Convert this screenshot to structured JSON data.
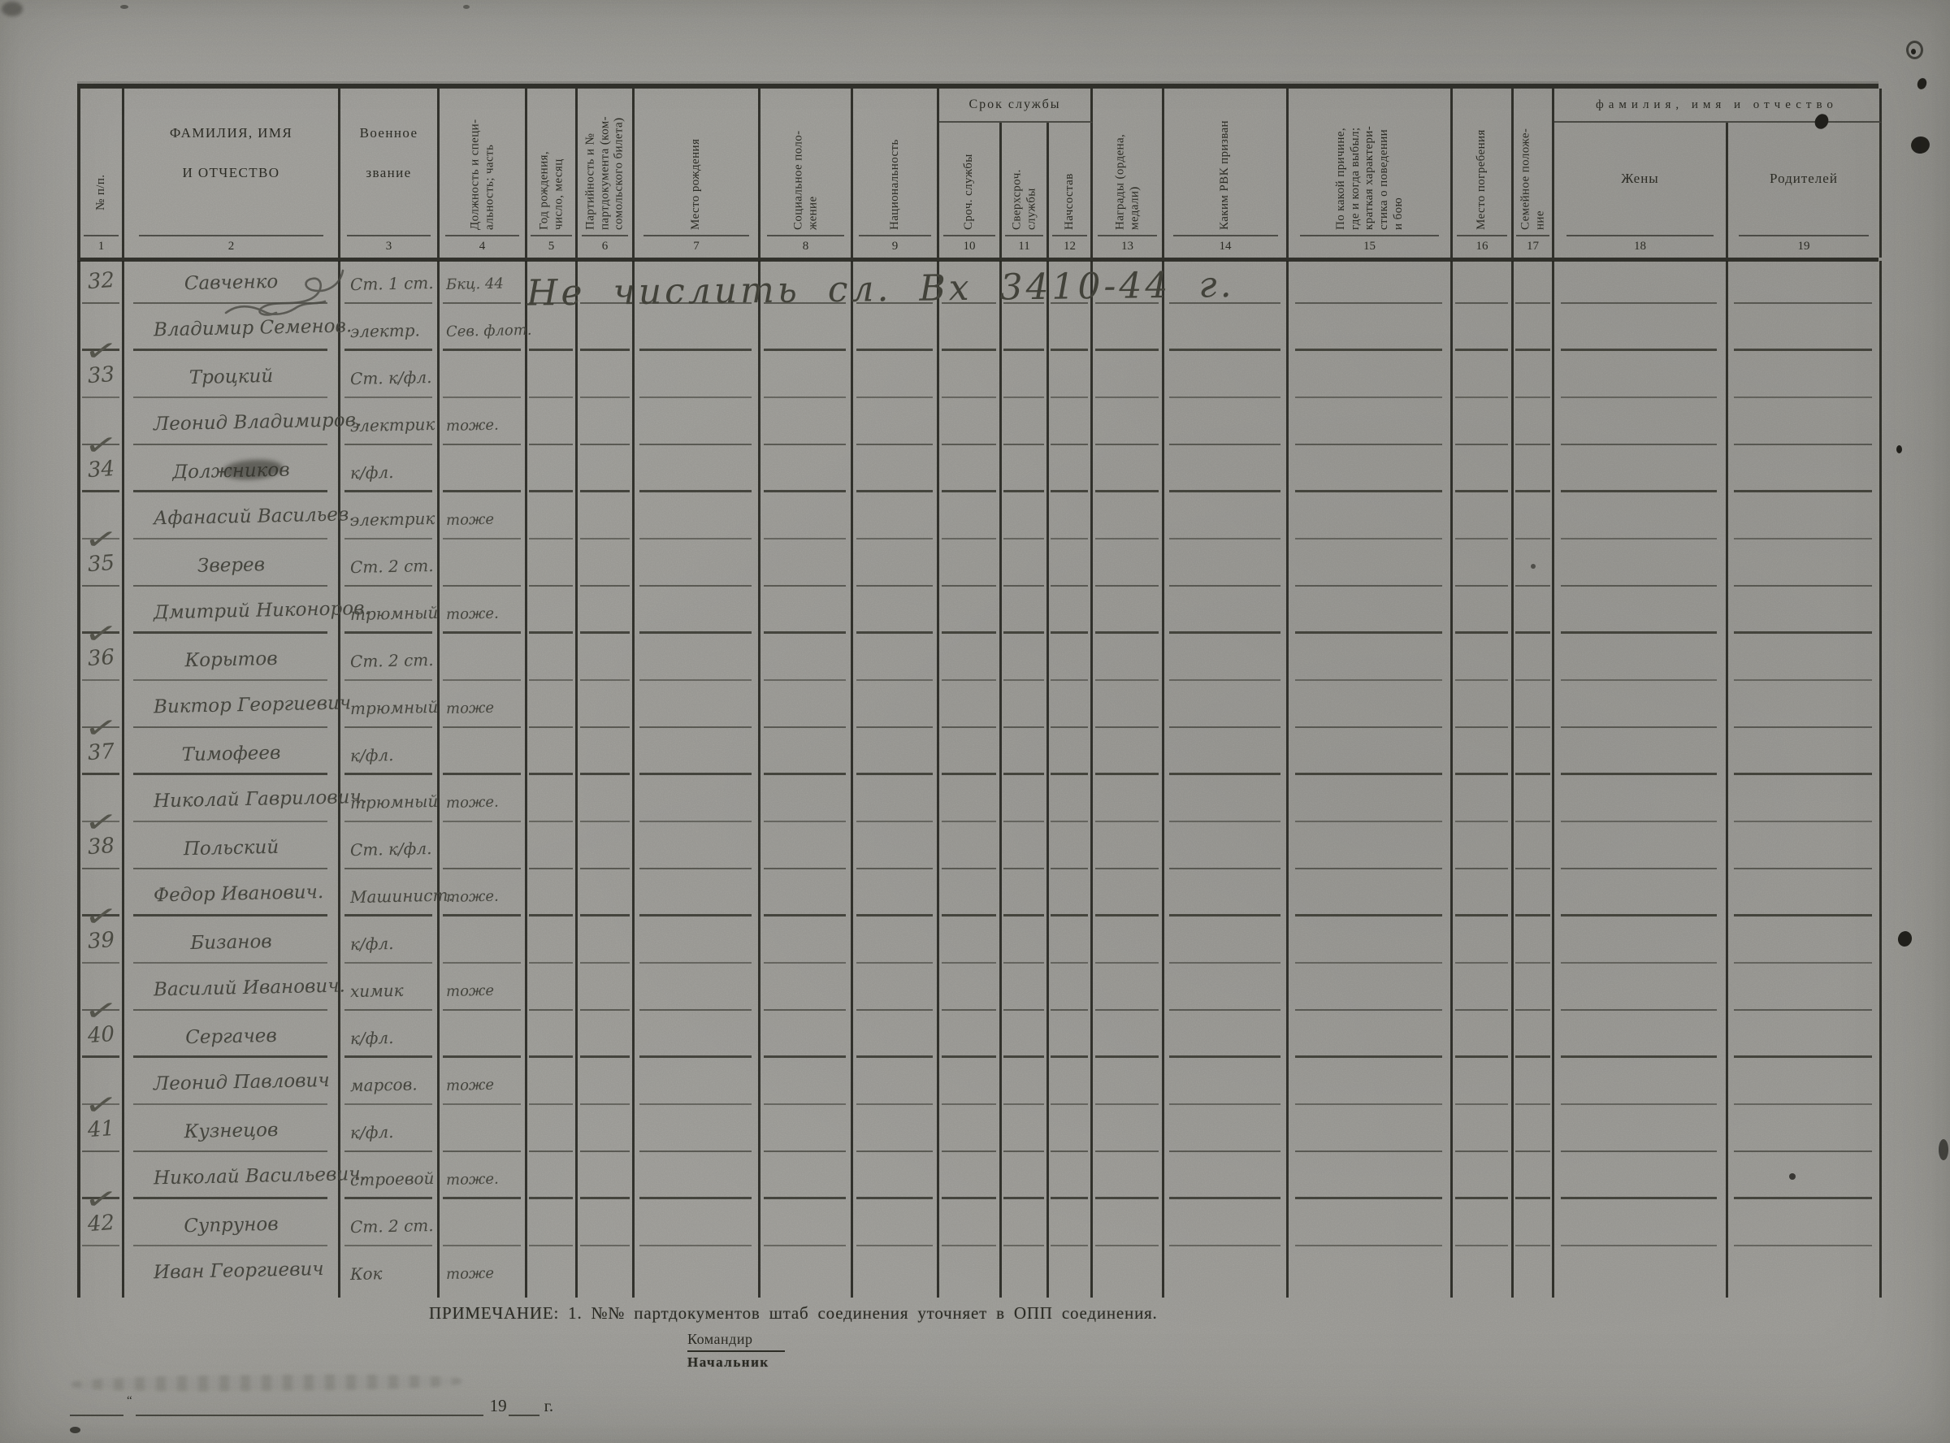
{
  "document": {
    "annotation": "Не числить сл. Вх 3410-44 г.",
    "note": "ПРИМЕЧАНИЕ: 1. №№ партдокументов штаб соединения уточняет в ОПП соединения.",
    "commander_label": "Командир",
    "chief_label": "Начальник",
    "date_quote": "“",
    "date_year": "19",
    "date_suffix": "г.",
    "checkmark_glyph": "✓"
  },
  "table": {
    "group_service": "Срок службы",
    "group_fio": "фамилия, имя и отчество",
    "columns": [
      {
        "num": "1",
        "label": "№ п/п."
      },
      {
        "num": "2",
        "label": "ФАМИЛИЯ, ИМЯ\nИ ОТЧЕСТВО"
      },
      {
        "num": "3",
        "label": "Военное\nзвание"
      },
      {
        "num": "4",
        "label": "Должность и специ-\nальность; часть"
      },
      {
        "num": "5",
        "label": "Год рождения,\nчисло, месяц"
      },
      {
        "num": "6",
        "label": "Партийность и №\nпартдокумента (ком-\nсомольского билета)"
      },
      {
        "num": "7",
        "label": "Место рождения"
      },
      {
        "num": "8",
        "label": "Социальное поло-\nжение"
      },
      {
        "num": "9",
        "label": "Национальность"
      },
      {
        "num": "10",
        "label": "Сроч. службы"
      },
      {
        "num": "11",
        "label": "Сверхсроч.\nслужбы"
      },
      {
        "num": "12",
        "label": "Начсостав"
      },
      {
        "num": "13",
        "label": "Награды (ордена,\nмедали)"
      },
      {
        "num": "14",
        "label": "Каким РВК призван"
      },
      {
        "num": "15",
        "label": "По какой причине,\nгде и когда выбыл;\nкраткая характери-\nстика о поведении\nи бою"
      },
      {
        "num": "16",
        "label": "Место погребения"
      },
      {
        "num": "17",
        "label": "Семейное положе-\nние"
      },
      {
        "num": "18",
        "label": "Жены"
      },
      {
        "num": "19",
        "label": "Родителей"
      }
    ]
  },
  "rows": [
    {
      "no": "32",
      "name": "Савченко",
      "c3": "Ст. 1 ст.",
      "c4": "Бкц. 44",
      "flourish": true
    },
    {
      "check": true,
      "name": "Владимир Семенов.",
      "c3": "электр.",
      "c4": "Сев. флот."
    },
    {
      "no": "33",
      "name": "Троцкий",
      "c3": "Ст. к/фл.",
      "c4": ""
    },
    {
      "check": true,
      "name": "Леонид Владимиров.",
      "c3": "электрик",
      "c4": "тоже."
    },
    {
      "no": "34",
      "name": "Должников",
      "c3": "к/фл.",
      "c4": "",
      "smudge": true
    },
    {
      "check": true,
      "name": "Афанасий Васильев.",
      "c3": "электрик",
      "c4": "тоже"
    },
    {
      "no": "35",
      "name": "Зверев",
      "c3": "Ст. 2 ст.",
      "c4": ""
    },
    {
      "check": true,
      "name": "Дмитрий Никоноров.",
      "c3": "трюмный",
      "c4": "тоже."
    },
    {
      "no": "36",
      "name": "Корытов",
      "c3": "Ст. 2 ст.",
      "c4": ""
    },
    {
      "check": true,
      "name": "Виктор Георгиевич",
      "c3": "трюмный",
      "c4": "тоже"
    },
    {
      "no": "37",
      "name": "Тимофеев",
      "c3": "к/фл.",
      "c4": ""
    },
    {
      "check": true,
      "name": "Николай Гаврилович.",
      "c3": "трюмный",
      "c4": "тоже."
    },
    {
      "no": "38",
      "name": "Польский",
      "c3": "Ст. к/фл.",
      "c4": ""
    },
    {
      "check": true,
      "name": "Федор Иванович.",
      "c3": "Машинист.",
      "c4": "тоже."
    },
    {
      "no": "39",
      "name": "Бизанов",
      "c3": "к/фл.",
      "c4": ""
    },
    {
      "check": true,
      "name": "Василий Иванович.",
      "c3": "химик",
      "c4": "тоже"
    },
    {
      "no": "40",
      "name": "Сергачев",
      "c3": "к/фл.",
      "c4": ""
    },
    {
      "check": true,
      "name": "Леонид Павлович",
      "c3": "марсов.",
      "c4": "тоже"
    },
    {
      "no": "41",
      "name": "Кузнецов",
      "c3": "к/фл.",
      "c4": ""
    },
    {
      "check": true,
      "name": "Николай Васильевич.",
      "c3": "строевой",
      "c4": "тоже."
    },
    {
      "no": "42",
      "name": "Супрунов",
      "c3": "Ст. 2 ст.",
      "c4": ""
    },
    {
      "name": "Иван Георгиевич",
      "c3": "Кок",
      "c4": "тоже",
      "last": true
    }
  ]
}
